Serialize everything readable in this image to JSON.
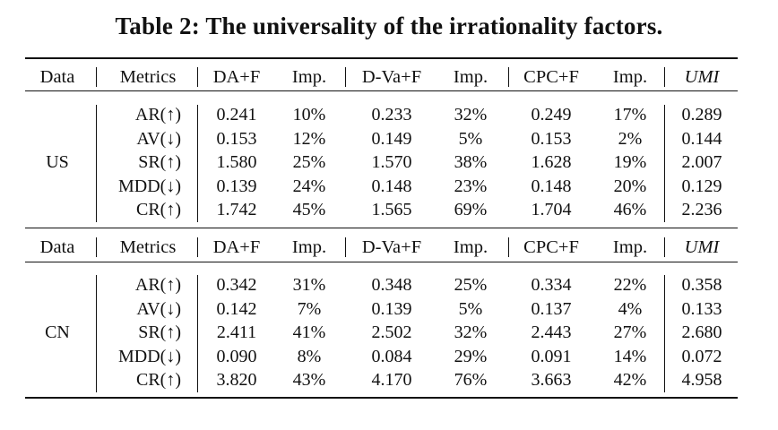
{
  "title": "Table 2: The universality of the irrationality factors.",
  "header": [
    "Data",
    "Metrics",
    "DA+F",
    "Imp.",
    "D-Va+F",
    "Imp.",
    "CPC+F",
    "Imp.",
    "UMI"
  ],
  "blocks": [
    {
      "data": "US",
      "rows": [
        {
          "metric": "AR(↑)",
          "vals": [
            "0.241",
            "10%",
            "0.233",
            "32%",
            "0.249",
            "17%",
            "0.289"
          ]
        },
        {
          "metric": "AV(↓)",
          "vals": [
            "0.153",
            "12%",
            "0.149",
            "5%",
            "0.153",
            "2%",
            "0.144"
          ]
        },
        {
          "metric": "SR(↑)",
          "vals": [
            "1.580",
            "25%",
            "1.570",
            "38%",
            "1.628",
            "19%",
            "2.007"
          ]
        },
        {
          "metric": "MDD(↓)",
          "vals": [
            "0.139",
            "24%",
            "0.148",
            "23%",
            "0.148",
            "20%",
            "0.129"
          ]
        },
        {
          "metric": "CR(↑)",
          "vals": [
            "1.742",
            "45%",
            "1.565",
            "69%",
            "1.704",
            "46%",
            "2.236"
          ]
        }
      ]
    },
    {
      "data": "CN",
      "rows": [
        {
          "metric": "AR(↑)",
          "vals": [
            "0.342",
            "31%",
            "0.348",
            "25%",
            "0.334",
            "22%",
            "0.358"
          ]
        },
        {
          "metric": "AV(↓)",
          "vals": [
            "0.142",
            "7%",
            "0.139",
            "5%",
            "0.137",
            "4%",
            "0.133"
          ]
        },
        {
          "metric": "SR(↑)",
          "vals": [
            "2.411",
            "41%",
            "2.502",
            "32%",
            "2.443",
            "27%",
            "2.680"
          ]
        },
        {
          "metric": "MDD(↓)",
          "vals": [
            "0.090",
            "8%",
            "0.084",
            "29%",
            "0.091",
            "14%",
            "0.072"
          ]
        },
        {
          "metric": "CR(↑)",
          "vals": [
            "3.820",
            "43%",
            "4.170",
            "76%",
            "3.663",
            "42%",
            "4.958"
          ]
        }
      ]
    }
  ]
}
